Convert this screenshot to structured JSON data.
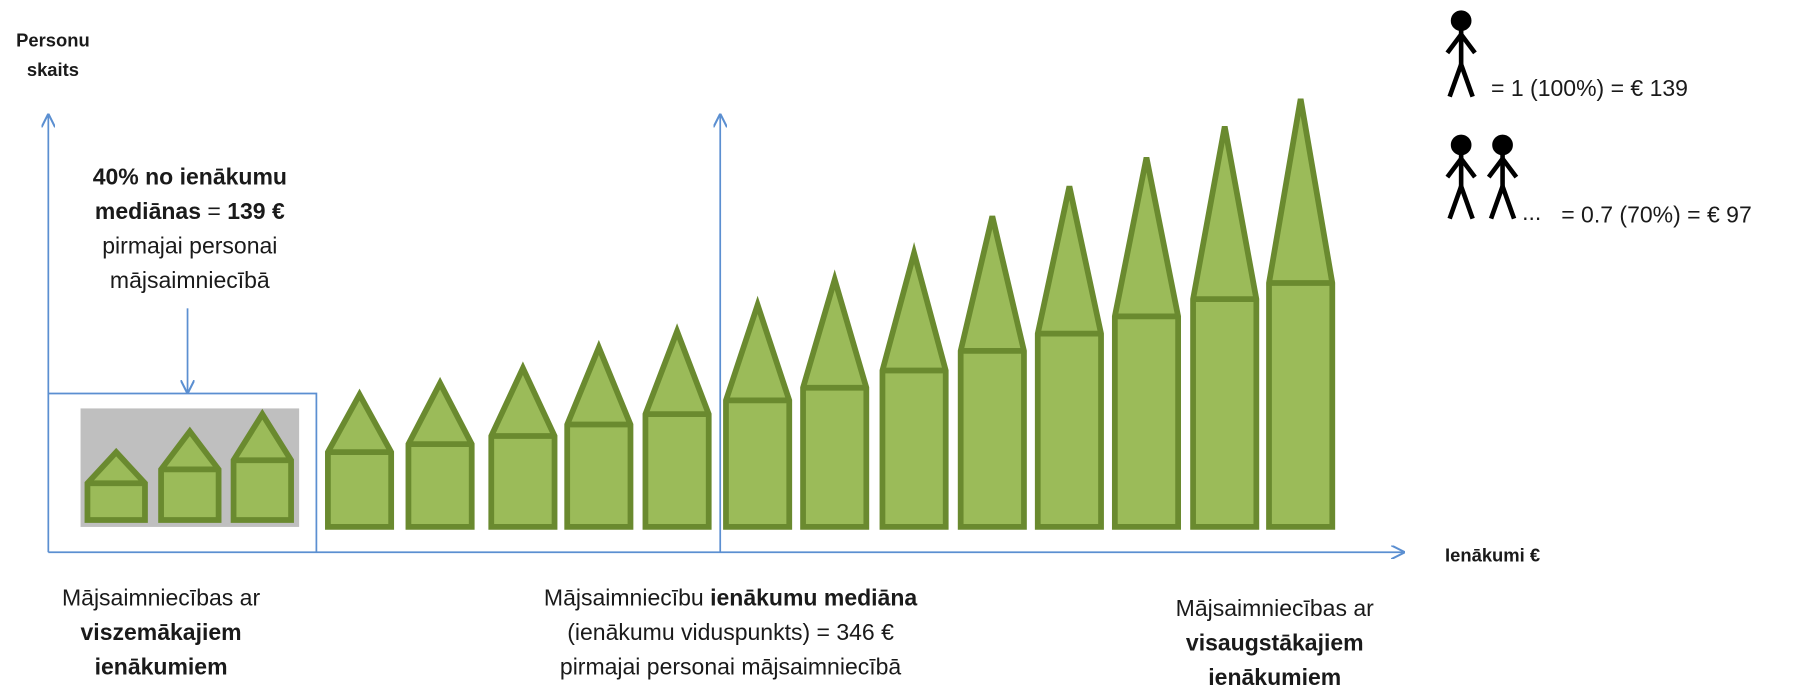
{
  "y_axis_label": [
    "Personu",
    "skaits"
  ],
  "x_axis_label": "Ienākumi €",
  "note": {
    "line1": "40% no ienākumu",
    "line2_bold": "mediānas",
    "line2_mid": " = ",
    "line2_value": "139 €",
    "line3": "pirmajai personai",
    "line4": "mājsaimniecībā"
  },
  "legend": {
    "one": "= 1 (100%) = € 139",
    "dots": "...",
    "two": "= 0.7 (70%) = € 97"
  },
  "bottom_left": {
    "line1": "Mājsaimniecības ar",
    "line2": "viszemākajiem",
    "line3": "ienākumiem"
  },
  "bottom_middle": {
    "line1_a": "Mājsaimniecību ",
    "line1_b": "ienākumu mediāna",
    "line2": "(ienākumu viduspunkts) = 346 €",
    "line3": "pirmajai personai mājsaimniecībā"
  },
  "bottom_right": {
    "line1": "Mājsaimniecības ar",
    "line2": "visaugstākajiem",
    "line3": "ienākumiem"
  }
}
